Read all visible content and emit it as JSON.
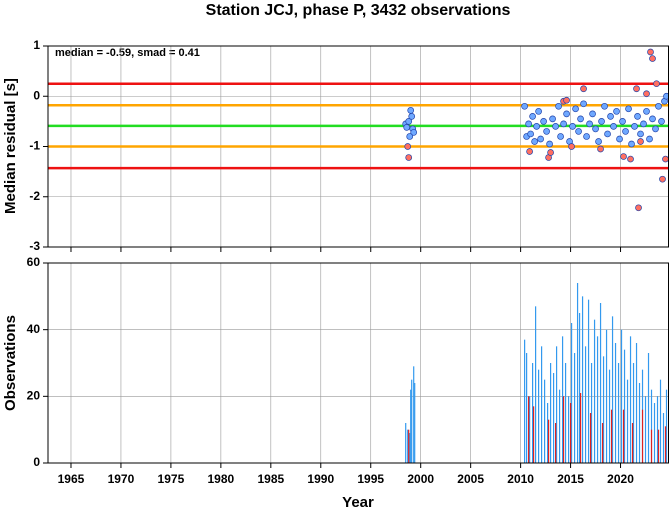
{
  "chart_data": [
    {
      "type": "scatter",
      "title": "Station JCJ, phase P, 3432 observations",
      "y_label": "Median residual [s]",
      "annotation": "median = -0.59, smad = 0.41",
      "xlim": [
        1962.7,
        2024.8
      ],
      "xticks": [
        1965,
        1970,
        1975,
        1980,
        1985,
        1990,
        1995,
        2000,
        2005,
        2010,
        2015,
        2020
      ],
      "ylim": [
        -3,
        1
      ],
      "yticks": [
        1,
        0,
        -1,
        -2,
        -3
      ],
      "grid": true,
      "hlines": [
        {
          "value": 0.25,
          "color": "#ee1111"
        },
        {
          "value": -0.18,
          "color": "#ffa500"
        },
        {
          "value": -0.59,
          "color": "#22dd22"
        },
        {
          "value": -1.0,
          "color": "#ffa500"
        },
        {
          "value": -1.43,
          "color": "#ee1111"
        }
      ],
      "series": [
        {
          "color": "#6fa8ff",
          "x": [
            1998.5,
            1998.6,
            1998.8,
            1999.0,
            1999.1,
            1999.2,
            1999.3,
            1998.9,
            2010.4,
            2010.6,
            2010.8,
            2011.0,
            2011.2,
            2011.4,
            2011.6,
            2011.8,
            2012.0,
            2012.3,
            2012.6,
            2012.9,
            2013.2,
            2013.5,
            2013.8,
            2014.0,
            2014.3,
            2014.6,
            2014.9,
            2015.2,
            2015.5,
            2015.8,
            2016.0,
            2016.3,
            2016.6,
            2016.9,
            2017.2,
            2017.5,
            2017.8,
            2018.1,
            2018.4,
            2018.7,
            2019.0,
            2019.3,
            2019.6,
            2019.9,
            2020.2,
            2020.5,
            2020.8,
            2021.1,
            2021.4,
            2021.7,
            2022.0,
            2022.3,
            2022.6,
            2022.9,
            2023.2,
            2023.5,
            2023.8,
            2024.1,
            2024.4,
            2024.6
          ],
          "values": [
            -0.55,
            -0.62,
            -0.5,
            -0.28,
            -0.4,
            -0.65,
            -0.72,
            -0.8,
            -0.2,
            -0.8,
            -0.55,
            -0.75,
            -0.4,
            -0.9,
            -0.6,
            -0.3,
            -0.85,
            -0.5,
            -0.7,
            -0.95,
            -0.45,
            -0.6,
            -0.2,
            -0.8,
            -0.55,
            -0.35,
            -0.9,
            -0.6,
            -0.25,
            -0.7,
            -0.45,
            -0.15,
            -0.8,
            -0.55,
            -0.35,
            -0.65,
            -0.9,
            -0.5,
            -0.2,
            -0.75,
            -0.4,
            -0.6,
            -0.3,
            -0.85,
            -0.5,
            -0.7,
            -0.25,
            -0.95,
            -0.6,
            -0.4,
            -0.75,
            -0.55,
            -0.3,
            -0.85,
            -0.45,
            -0.65,
            -0.2,
            -0.5,
            -0.1,
            0.0
          ]
        },
        {
          "color": "#ff6f61",
          "x": [
            1998.7,
            1998.8,
            2010.9,
            2012.8,
            2013.0,
            2014.3,
            2014.6,
            2015.1,
            2016.3,
            2018.0,
            2020.3,
            2021.0,
            2021.6,
            2021.8,
            2022.6,
            2023.0,
            2023.2,
            2023.6,
            2024.2,
            2024.5,
            2022.0
          ],
          "values": [
            -1.0,
            -1.22,
            -1.1,
            -1.22,
            -1.12,
            -0.1,
            -0.08,
            -1.0,
            0.15,
            -1.05,
            -1.2,
            -1.25,
            0.15,
            -2.22,
            0.05,
            0.88,
            0.75,
            0.25,
            -1.65,
            -1.25,
            -0.9
          ]
        }
      ]
    },
    {
      "type": "bar",
      "y_label": "Observations",
      "x_label": "Year",
      "xlim": [
        1962.7,
        2024.8
      ],
      "xticks": [
        1965,
        1970,
        1975,
        1980,
        1985,
        1990,
        1995,
        2000,
        2005,
        2010,
        2015,
        2020
      ],
      "ylim": [
        0,
        60
      ],
      "yticks": [
        0,
        20,
        40,
        60
      ],
      "grid": true,
      "series": [
        {
          "color": "#3399ee",
          "x": [
            1998.5,
            1998.7,
            1998.9,
            1999.0,
            1999.1,
            1999.3,
            1999.4,
            2010.4,
            2010.6,
            2010.9,
            2011.2,
            2011.5,
            2011.8,
            2012.1,
            2012.4,
            2012.7,
            2013.0,
            2013.3,
            2013.6,
            2013.9,
            2014.2,
            2014.5,
            2014.8,
            2015.1,
            2015.4,
            2015.7,
            2015.9,
            2016.2,
            2016.5,
            2016.8,
            2017.1,
            2017.4,
            2017.7,
            2018.0,
            2018.3,
            2018.6,
            2018.9,
            2019.2,
            2019.5,
            2019.8,
            2020.1,
            2020.4,
            2020.7,
            2021.0,
            2021.3,
            2021.6,
            2021.9,
            2022.2,
            2022.5,
            2022.8,
            2023.1,
            2023.4,
            2023.7,
            2024.0,
            2024.3,
            2024.6
          ],
          "values": [
            12,
            10,
            9,
            22,
            25,
            29,
            24,
            37,
            33,
            20,
            30,
            47,
            28,
            35,
            25,
            18,
            30,
            27,
            35,
            22,
            38,
            30,
            20,
            42,
            33,
            54,
            45,
            50,
            35,
            49,
            30,
            43,
            38,
            48,
            32,
            40,
            28,
            44,
            36,
            30,
            40,
            34,
            25,
            38,
            30,
            36,
            24,
            28,
            20,
            33,
            22,
            18,
            20,
            25,
            15,
            22
          ]
        },
        {
          "color": "#dd2222",
          "x": [
            1998.8,
            2010.8,
            2011.3,
            2012.8,
            2013.5,
            2014.3,
            2015.0,
            2016.0,
            2017.0,
            2018.2,
            2019.1,
            2020.3,
            2021.2,
            2022.2,
            2023.1,
            2023.8,
            2024.5
          ],
          "values": [
            10,
            20,
            17,
            13,
            12,
            20,
            18,
            21,
            15,
            12,
            16,
            16,
            12,
            16,
            10,
            10,
            11
          ]
        }
      ]
    }
  ]
}
